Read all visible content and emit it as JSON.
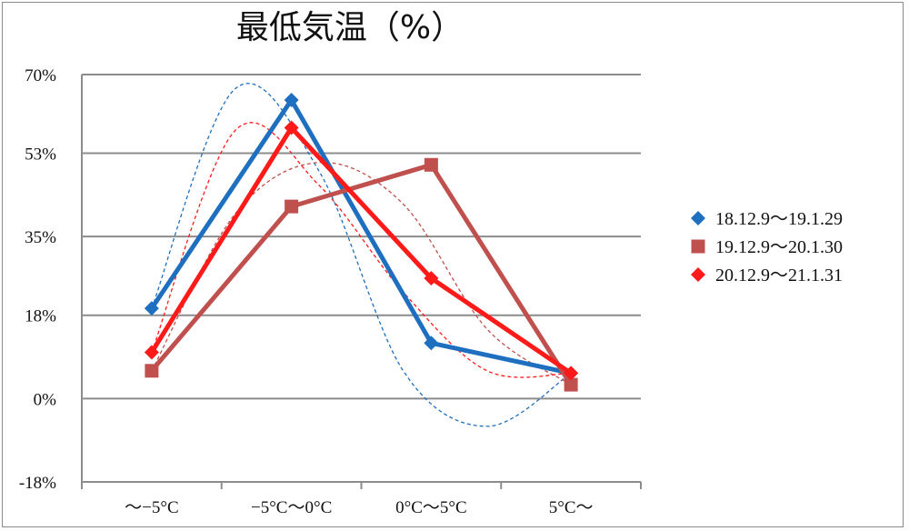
{
  "chart_data": {
    "type": "line",
    "title": "最低気温（%）",
    "xlabel": "",
    "ylabel": "",
    "categories": [
      "〜−5°C",
      "−5°C〜0°C",
      "0°C〜5°C",
      "5°C〜"
    ],
    "yticks": [
      "70%",
      "53%",
      "35%",
      "18%",
      "0%",
      "-18%"
    ],
    "ytick_values": [
      70,
      53,
      35,
      18,
      0,
      -18
    ],
    "ylim": [
      -18,
      70
    ],
    "grid": true,
    "legend_position": "right",
    "series": [
      {
        "name": "18.12.9〜19.1.29",
        "color": "#1f6fc0",
        "marker": "diamond",
        "values": [
          19.5,
          64.5,
          12,
          5.5
        ],
        "trend": [
          19.5,
          67,
          49,
          6,
          -6,
          5.5
        ]
      },
      {
        "name": "19.12.9〜20.1.30",
        "color": "#c0504d",
        "marker": "square",
        "values": [
          6,
          41.5,
          50.5,
          3
        ],
        "trend": [
          6,
          40,
          51,
          42,
          15,
          3
        ]
      },
      {
        "name": "20.12.9〜21.1.31",
        "color": "#ff1a1a",
        "marker": "diamond",
        "values": [
          10,
          58.5,
          26,
          5.5
        ],
        "trend": [
          10,
          58,
          46,
          23,
          6,
          5.5
        ]
      }
    ]
  }
}
